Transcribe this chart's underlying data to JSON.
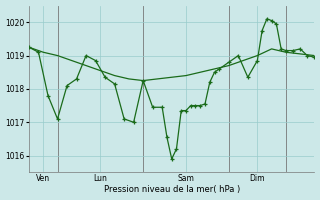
{
  "xlabel": "Pression niveau de la mer( hPa )",
  "bg_color": "#cce8e8",
  "grid_color": "#99cccc",
  "line_color": "#1a6b1a",
  "ylim": [
    1015.5,
    1020.5
  ],
  "yticks": [
    1016,
    1017,
    1018,
    1019,
    1020
  ],
  "xlim": [
    0,
    240
  ],
  "vline_positions": [
    24,
    96,
    168,
    216
  ],
  "xtick_positions": [
    12,
    60,
    132,
    192
  ],
  "xtick_labels": [
    "Ven",
    "Lun",
    "Sam",
    "Dim"
  ],
  "series1_x": [
    0,
    12,
    24,
    36,
    48,
    60,
    72,
    84,
    96,
    108,
    120,
    132,
    144,
    156,
    168,
    180,
    192,
    204,
    216,
    228,
    240
  ],
  "series1_y": [
    1019.25,
    1019.1,
    1019.0,
    1018.85,
    1018.7,
    1018.55,
    1018.4,
    1018.3,
    1018.25,
    1018.3,
    1018.35,
    1018.4,
    1018.5,
    1018.6,
    1018.7,
    1018.85,
    1019.0,
    1019.2,
    1019.1,
    1019.05,
    1019.0
  ],
  "series2_x": [
    0,
    8,
    16,
    24,
    32,
    40,
    48,
    56,
    64,
    72,
    80,
    88,
    96,
    104,
    112,
    116,
    120,
    124,
    128,
    132,
    136,
    140,
    144,
    148,
    152,
    156,
    160,
    168,
    176,
    184,
    192,
    196,
    200,
    204,
    208,
    212,
    216,
    222,
    228,
    234,
    240
  ],
  "series2_y": [
    1019.25,
    1019.1,
    1017.8,
    1017.1,
    1018.1,
    1018.3,
    1019.0,
    1018.85,
    1018.35,
    1018.15,
    1017.1,
    1017.0,
    1018.25,
    1017.45,
    1017.45,
    1016.55,
    1015.9,
    1016.2,
    1017.35,
    1017.35,
    1017.5,
    1017.5,
    1017.5,
    1017.55,
    1018.2,
    1018.5,
    1018.6,
    1018.8,
    1019.0,
    1018.35,
    1018.85,
    1019.75,
    1020.1,
    1020.05,
    1019.95,
    1019.2,
    1019.15,
    1019.15,
    1019.2,
    1019.0,
    1018.95
  ]
}
